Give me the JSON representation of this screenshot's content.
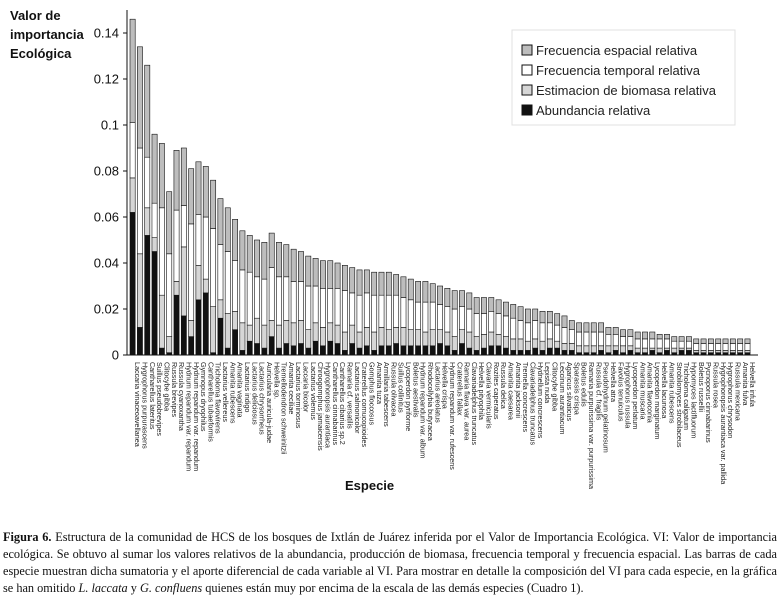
{
  "chart_data": {
    "type": "bar",
    "stacked": true,
    "ylabel_lines": [
      "Valor de",
      "importancia",
      "Ecológica"
    ],
    "xlabel": "Especie",
    "ylim": [
      0,
      0.15
    ],
    "yticks": [
      "0",
      "0.02",
      "0.04",
      "0.06",
      "0.08",
      "0.1",
      "0.12",
      "0.14"
    ],
    "legend_position": "top-right",
    "colors": {
      "frecuencia_espacial": "#bdbdbd",
      "frecuencia_temporal": "#ffffff",
      "biomasa": "#d6d6d6",
      "abundancia": "#111111"
    },
    "series": [
      {
        "key": "frecuencia_espacial",
        "name": "Frecuencia espacial relativa"
      },
      {
        "key": "frecuencia_temporal",
        "name": "Frecuencia temporal relativa"
      },
      {
        "key": "biomasa",
        "name": "Estimacion de biomasa relativa"
      },
      {
        "key": "abundancia",
        "name": "Abundancia relativa"
      }
    ],
    "categories": [
      "Laccaria vinaceoavellanea",
      "Hygrophorus purpurascens",
      "Cantharellus lateritus",
      "Suillus pseudobrevipes",
      "Clitocybe gibba",
      "Russula brevipes",
      "Russula cyanoxantha",
      "Hydnum repandum var. repandum",
      "Hydnum repandum var. repandum",
      "Gymnopus dryophilus",
      "Cantharellus tubaeformis",
      "Tricholoma flavovirens",
      "Lactarius vellereus",
      "Amanita rubescens",
      "Amanita vaginata",
      "Lactarius indigo",
      "Lactarius deliciosus",
      "Lactarius chrysorrheus",
      "Auricularia auricula-judae",
      "Helvella sp.",
      "Tremellodendron schweinitzii",
      "Amanita ceciliae",
      "Lactarius torminosus",
      "Laccaria bicolor",
      "Lactarius volemus",
      "Chroogomphus jamaicensis",
      "Hygrophoropsis aurantiaca",
      "Cantharellus cinnabarinus",
      "Cantharellus cibarius sp.2",
      "Ramaria cf. versatilis",
      "Lactarius salmonicolor",
      "Craterellus cornucopioides",
      "Gomphus floccosus",
      "Amanita tuza",
      "Armillaria tabescens",
      "Russula olivacea",
      "Suillus collinitus",
      "Lycoperdon pyriforme",
      "Boletus aestivalis",
      "Hydnum repandum var. album",
      "Rhodocollybia butyracea",
      "Lactarius areolatus",
      "Helvella crispa",
      "Hydnum repandum var. rufescens",
      "Craterellus fallax",
      "Ramaria flava var. aurea",
      "Clavariadelphus truncatus",
      "Helvella pityophila",
      "Clavaria vermicularis",
      "Rozites caperatus",
      "Russula delica",
      "Amanita caesarea",
      "Amanita jacksonii",
      "Tremella concrescens",
      "Clavariadelphus truncatus",
      "Hydnellum concrescens",
      "Lepista nuda",
      "Clitocybe gibba",
      "Leccinum aurantiacum",
      "Agaricus silvaticus",
      "Sparassis crispa",
      "Boletus edulis",
      "Ramaria purpurissima var. purpurissima",
      "Russula cf. fragilis",
      "Pseudohydnum gelatinosum",
      "Helvella atra",
      "Favolus tenuiculus",
      "Hygrophorus russula",
      "Lycoperdon perlatum",
      "Amanita muscaria",
      "Amanita flavoconia",
      "Lycoperdon marginatum",
      "Helvella lacunosa",
      "Amanita rubescens",
      "Strobilomyces strobilaceus",
      "Tricholoma caligatum",
      "Hypomyces lactifluorum",
      "Boletus russellii",
      "Pycnoporus cinnabarinus",
      "Russula rosea",
      "Hygrophoropsis aurantiaca var. pallida",
      "Hygrophorus chrysodon",
      "Russula mexicana",
      "Amanita fulva",
      "Helvella infula"
    ],
    "values": {
      "frecuencia_espacial": [
        0.045,
        0.044,
        0.04,
        0.03,
        0.028,
        0.027,
        0.026,
        0.025,
        0.024,
        0.023,
        0.022,
        0.021,
        0.02,
        0.019,
        0.018,
        0.017,
        0.016,
        0.016,
        0.016,
        0.015,
        0.015,
        0.014,
        0.014,
        0.013,
        0.013,
        0.012,
        0.012,
        0.012,
        0.011,
        0.011,
        0.011,
        0.011,
        0.01,
        0.01,
        0.01,
        0.01,
        0.009,
        0.009,
        0.009,
        0.009,
        0.009,
        0.008,
        0.008,
        0.008,
        0.008,
        0.007,
        0.007,
        0.007,
        0.007,
        0.006,
        0.006,
        0.006,
        0.006,
        0.006,
        0.006,
        0.005,
        0.005,
        0.005,
        0.005,
        0.005,
        0.004,
        0.004,
        0.004,
        0.004,
        0.004,
        0.003,
        0.003,
        0.003,
        0.003,
        0.003,
        0.003,
        0.003,
        0.002,
        0.002,
        0.002,
        0.002,
        0.002,
        0.002,
        0.002,
        0.002,
        0.002,
        0.002,
        0.002,
        0.002,
        0.002
      ],
      "frecuencia_temporal": [
        0.024,
        0.046,
        0.022,
        0.015,
        0.038,
        0.036,
        0.031,
        0.018,
        0.042,
        0.022,
        0.027,
        0.034,
        0.024,
        0.027,
        0.022,
        0.023,
        0.023,
        0.018,
        0.02,
        0.023,
        0.021,
        0.019,
        0.018,
        0.017,
        0.019,
        0.016,
        0.017,
        0.015,
        0.016,
        0.018,
        0.014,
        0.016,
        0.015,
        0.016,
        0.014,
        0.015,
        0.014,
        0.013,
        0.013,
        0.012,
        0.013,
        0.012,
        0.011,
        0.011,
        0.012,
        0.01,
        0.01,
        0.01,
        0.009,
        0.009,
        0.009,
        0.009,
        0.009,
        0.008,
        0.008,
        0.008,
        0.008,
        0.007,
        0.007,
        0.007,
        0.006,
        0.006,
        0.006,
        0.006,
        0.006,
        0.005,
        0.005,
        0.004,
        0.004,
        0.004,
        0.004,
        0.004,
        0.004,
        0.004,
        0.003,
        0.003,
        0.003,
        0.003,
        0.003,
        0.003,
        0.003,
        0.003,
        0.003,
        0.003,
        0.003
      ],
      "biomasa": [
        0.015,
        0.032,
        0.012,
        0.006,
        0.023,
        0.007,
        0.006,
        0.03,
        0.007,
        0.015,
        0.006,
        0.02,
        0.008,
        0.015,
        0.008,
        0.012,
        0.007,
        0.011,
        0.01,
        0.007,
        0.01,
        0.01,
        0.01,
        0.01,
        0.008,
        0.008,
        0.008,
        0.008,
        0.008,
        0.008,
        0.008,
        0.007,
        0.008,
        0.008,
        0.008,
        0.007,
        0.007,
        0.008,
        0.007,
        0.007,
        0.006,
        0.007,
        0.006,
        0.006,
        0.006,
        0.006,
        0.007,
        0.006,
        0.006,
        0.006,
        0.005,
        0.005,
        0.005,
        0.005,
        0.004,
        0.004,
        0.004,
        0.004,
        0.003,
        0.003,
        0.003,
        0.003,
        0.003,
        0.003,
        0.002,
        0.003,
        0.002,
        0.003,
        0.002,
        0.002,
        0.002,
        0.001,
        0.002,
        0.001,
        0.002,
        0.001,
        0.001,
        0.001,
        0.001,
        0.001,
        0.001,
        0.001,
        0.001,
        0.001,
        0.001
      ],
      "abundancia": [
        0.062,
        0.012,
        0.052,
        0.045,
        0.003,
        0.001,
        0.026,
        0.017,
        0.008,
        0.024,
        0.027,
        0.001,
        0.016,
        0.003,
        0.011,
        0.002,
        0.006,
        0.005,
        0.003,
        0.008,
        0.003,
        0.005,
        0.004,
        0.005,
        0.003,
        0.006,
        0.004,
        0.006,
        0.005,
        0.002,
        0.005,
        0.003,
        0.004,
        0.002,
        0.004,
        0.004,
        0.005,
        0.004,
        0.004,
        0.004,
        0.004,
        0.004,
        0.005,
        0.004,
        0.002,
        0.005,
        0.003,
        0.002,
        0.003,
        0.004,
        0.004,
        0.003,
        0.002,
        0.002,
        0.002,
        0.003,
        0.002,
        0.003,
        0.003,
        0.002,
        0.002,
        0.001,
        0.001,
        0.001,
        0.002,
        0.001,
        0.002,
        0.001,
        0.002,
        0.001,
        0.001,
        0.002,
        0.001,
        0.002,
        0.001,
        0.002,
        0.002,
        0.001,
        0.001,
        0.001,
        0.001,
        0.001,
        0.001,
        0.001,
        0.001
      ]
    }
  },
  "caption": {
    "label": "Figura 6.",
    "part1": " Estructura de la comunidad de HCS de los bosques de Ixtlán de Juárez inferida por el Valor de Importancia Ecológica. VI: Valor de importancia ecológica. Se obtuvo al sumar los valores relativos de la abundancia, producción de biomasa, frecuencia temporal y frecuencia espacial. Las barras de cada especie muestran dicha sumatoria y el aporte diferencial de cada variable al VI. Para mostrar en detalle la composición del VI para cada especie, en la gráfica se han omitido ",
    "species1": "L. laccata",
    "part2": " y ",
    "species2": "G. confluens",
    "part3": " quienes están muy por encima de la escala de las demás especies (Cuadro 1)."
  }
}
